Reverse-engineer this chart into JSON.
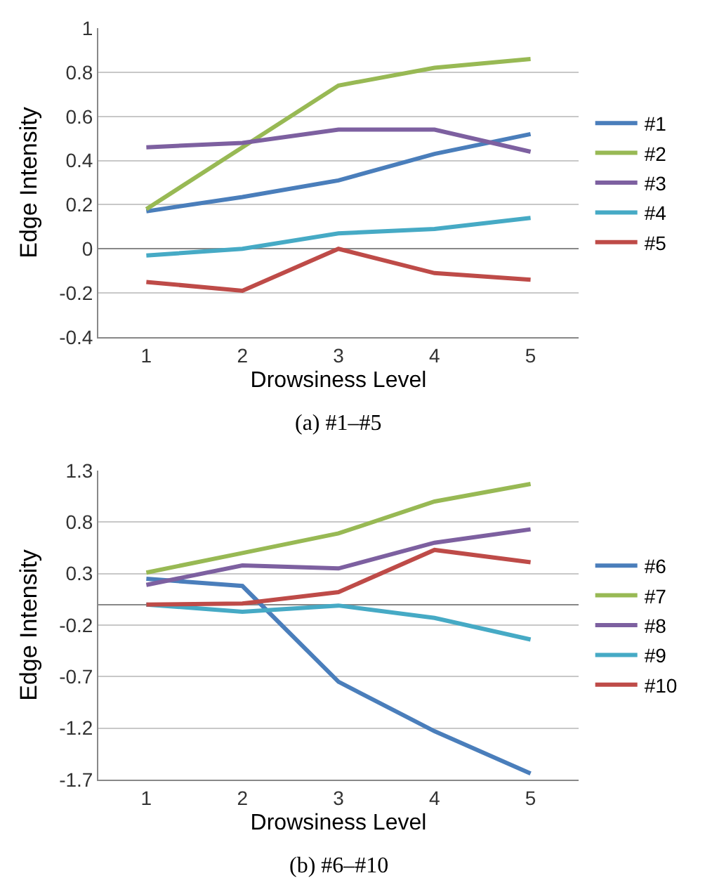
{
  "chart_data": [
    {
      "type": "line",
      "xlabel": "Drowsiness Level",
      "ylabel": "Edge Intensity",
      "categories": [
        "1",
        "2",
        "3",
        "4",
        "5"
      ],
      "ylim": [
        -0.4,
        1
      ],
      "yticks": [
        -0.4,
        -0.2,
        0,
        0.2,
        0.4,
        0.6,
        0.8,
        1
      ],
      "grid": "y",
      "legend": "right",
      "annotations": [
        "(a) #1–#5"
      ],
      "series": [
        {
          "name": "#1",
          "color": "#4a7ebb",
          "values": [
            0.17,
            0.235,
            0.31,
            0.43,
            0.52
          ]
        },
        {
          "name": "#2",
          "color": "#98b954",
          "values": [
            0.18,
            0.46,
            0.74,
            0.82,
            0.86
          ]
        },
        {
          "name": "#3",
          "color": "#7d60a0",
          "values": [
            0.46,
            0.48,
            0.54,
            0.54,
            0.44
          ]
        },
        {
          "name": "#4",
          "color": "#46aac5",
          "values": [
            -0.03,
            0.0,
            0.07,
            0.09,
            0.14
          ]
        },
        {
          "name": "#5",
          "color": "#be4b48",
          "values": [
            -0.15,
            -0.19,
            0.0,
            -0.11,
            -0.14
          ]
        }
      ]
    },
    {
      "type": "line",
      "xlabel": "Drowsiness Level",
      "ylabel": "Edge Intensity",
      "categories": [
        "1",
        "2",
        "3",
        "4",
        "5"
      ],
      "ylim": [
        -1.7,
        1.3
      ],
      "yticks": [
        -1.7,
        -1.2,
        -0.7,
        -0.2,
        0.3,
        0.8,
        1.3
      ],
      "grid": "y",
      "legend": "right",
      "annotations": [
        "(b) #6–#10"
      ],
      "series": [
        {
          "name": "#6",
          "color": "#4a7ebb",
          "values": [
            0.25,
            0.18,
            -0.75,
            -1.23,
            -1.64
          ]
        },
        {
          "name": "#7",
          "color": "#98b954",
          "values": [
            0.31,
            0.5,
            0.69,
            1.0,
            1.17
          ]
        },
        {
          "name": "#8",
          "color": "#7d60a0",
          "values": [
            0.19,
            0.38,
            0.35,
            0.6,
            0.73
          ]
        },
        {
          "name": "#9",
          "color": "#46aac5",
          "values": [
            0.0,
            -0.07,
            -0.01,
            -0.13,
            -0.34
          ]
        },
        {
          "name": "#10",
          "color": "#be4b48",
          "values": [
            0.0,
            0.01,
            0.12,
            0.53,
            0.41
          ]
        }
      ]
    }
  ]
}
